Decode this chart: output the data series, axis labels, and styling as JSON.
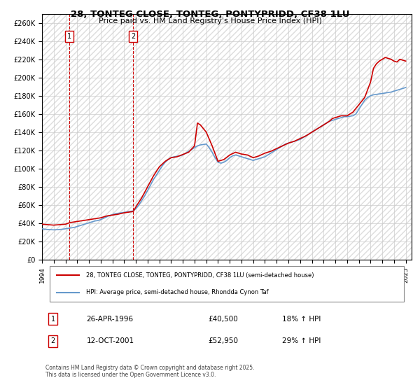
{
  "title": "28, TONTEG CLOSE, TONTEG, PONTYPRIDD, CF38 1LU",
  "subtitle": "Price paid vs. HM Land Registry's House Price Index (HPI)",
  "legend_line1": "28, TONTEG CLOSE, TONTEG, PONTYPRIDD, CF38 1LU (semi-detached house)",
  "legend_line2": "HPI: Average price, semi-detached house, Rhondda Cynon Taf",
  "footnote": "Contains HM Land Registry data © Crown copyright and database right 2025.\nThis data is licensed under the Open Government Licence v3.0.",
  "transactions": [
    {
      "label": "1",
      "date": "26-APR-1996",
      "price": 40500,
      "pct": "18% ↑ HPI",
      "x_year": 1996.32
    },
    {
      "label": "2",
      "date": "12-OCT-2001",
      "price": 52950,
      "pct": "29% ↑ HPI",
      "x_year": 2001.78
    }
  ],
  "price_color": "#cc0000",
  "hpi_color": "#6699cc",
  "vline_color": "#cc0000",
  "ylim": [
    0,
    270000
  ],
  "yticks": [
    0,
    20000,
    40000,
    60000,
    80000,
    100000,
    120000,
    140000,
    160000,
    180000,
    200000,
    220000,
    240000,
    260000
  ],
  "xlim_start": 1994.0,
  "xlim_end": 2025.5,
  "xticks": [
    1994,
    1995,
    1996,
    1997,
    1998,
    1999,
    2000,
    2001,
    2002,
    2003,
    2004,
    2005,
    2006,
    2007,
    2008,
    2009,
    2010,
    2011,
    2012,
    2013,
    2014,
    2015,
    2016,
    2017,
    2018,
    2019,
    2020,
    2021,
    2022,
    2023,
    2024,
    2025
  ],
  "hpi_data": {
    "years": [
      1994.0,
      1994.25,
      1994.5,
      1994.75,
      1995.0,
      1995.25,
      1995.5,
      1995.75,
      1996.0,
      1996.25,
      1996.5,
      1996.75,
      1997.0,
      1997.25,
      1997.5,
      1997.75,
      1998.0,
      1998.25,
      1998.5,
      1998.75,
      1999.0,
      1999.25,
      1999.5,
      1999.75,
      2000.0,
      2000.25,
      2000.5,
      2000.75,
      2001.0,
      2001.25,
      2001.5,
      2001.75,
      2002.0,
      2002.25,
      2002.5,
      2002.75,
      2003.0,
      2003.25,
      2003.5,
      2003.75,
      2004.0,
      2004.25,
      2004.5,
      2004.75,
      2005.0,
      2005.25,
      2005.5,
      2005.75,
      2006.0,
      2006.25,
      2006.5,
      2006.75,
      2007.0,
      2007.25,
      2007.5,
      2007.75,
      2008.0,
      2008.25,
      2008.5,
      2008.75,
      2009.0,
      2009.25,
      2009.5,
      2009.75,
      2010.0,
      2010.25,
      2010.5,
      2010.75,
      2011.0,
      2011.25,
      2011.5,
      2011.75,
      2012.0,
      2012.25,
      2012.5,
      2012.75,
      2013.0,
      2013.25,
      2013.5,
      2013.75,
      2014.0,
      2014.25,
      2014.5,
      2014.75,
      2015.0,
      2015.25,
      2015.5,
      2015.75,
      2016.0,
      2016.25,
      2016.5,
      2016.75,
      2017.0,
      2017.25,
      2017.5,
      2017.75,
      2018.0,
      2018.25,
      2018.5,
      2018.75,
      2019.0,
      2019.25,
      2019.5,
      2019.75,
      2020.0,
      2020.25,
      2020.5,
      2020.75,
      2021.0,
      2021.25,
      2021.5,
      2021.75,
      2022.0,
      2022.25,
      2022.5,
      2022.75,
      2023.0,
      2023.25,
      2023.5,
      2023.75,
      2024.0,
      2024.25,
      2024.5,
      2024.75,
      2025.0
    ],
    "values": [
      34000,
      33500,
      33200,
      33000,
      32800,
      33000,
      33200,
      33500,
      34000,
      34500,
      35000,
      35500,
      36500,
      37500,
      38500,
      39500,
      40500,
      41500,
      42500,
      43000,
      44000,
      45500,
      47000,
      48500,
      49500,
      50500,
      51000,
      51500,
      52000,
      52500,
      53000,
      53500,
      56000,
      60000,
      65000,
      70000,
      76000,
      82000,
      88000,
      93000,
      98000,
      103000,
      107000,
      110000,
      112000,
      113000,
      113500,
      114000,
      115000,
      117000,
      119000,
      121000,
      123000,
      125000,
      126000,
      126500,
      127000,
      123000,
      118000,
      112000,
      107000,
      106000,
      107000,
      109000,
      112000,
      114000,
      115000,
      114000,
      113000,
      112000,
      111000,
      110000,
      109000,
      110000,
      111000,
      112000,
      113000,
      115000,
      117000,
      119000,
      121000,
      123000,
      125000,
      127000,
      128000,
      129000,
      130000,
      131000,
      132000,
      134000,
      136000,
      138000,
      140000,
      142000,
      144000,
      146000,
      148000,
      150000,
      152000,
      153000,
      154000,
      155000,
      156000,
      157000,
      157000,
      157500,
      158000,
      160000,
      165000,
      170000,
      175000,
      178000,
      180000,
      181000,
      181500,
      182000,
      182500,
      183000,
      183500,
      184000,
      185000,
      186000,
      187000,
      188000,
      189000
    ]
  },
  "price_data": {
    "years": [
      1994.0,
      1994.5,
      1995.0,
      1995.5,
      1996.0,
      1996.32,
      1996.5,
      1997.0,
      1997.5,
      1998.0,
      1998.5,
      1999.0,
      1999.5,
      2000.0,
      2000.5,
      2001.0,
      2001.78,
      2002.0,
      2002.5,
      2003.0,
      2003.5,
      2004.0,
      2004.5,
      2005.0,
      2005.5,
      2006.0,
      2006.5,
      2007.0,
      2007.25,
      2007.5,
      2008.0,
      2008.5,
      2009.0,
      2009.5,
      2010.0,
      2010.5,
      2011.0,
      2011.5,
      2012.0,
      2012.5,
      2013.0,
      2013.5,
      2014.0,
      2014.5,
      2015.0,
      2015.5,
      2016.0,
      2016.5,
      2017.0,
      2017.5,
      2018.0,
      2018.5,
      2018.75,
      2019.0,
      2019.5,
      2020.0,
      2020.5,
      2021.0,
      2021.5,
      2022.0,
      2022.25,
      2022.5,
      2022.75,
      2023.0,
      2023.25,
      2023.5,
      2023.75,
      2024.0,
      2024.25,
      2024.5,
      2025.0
    ],
    "values": [
      39000,
      38500,
      38000,
      38500,
      39000,
      40500,
      41000,
      42000,
      43000,
      44000,
      45000,
      46000,
      48000,
      49000,
      50000,
      51500,
      52950,
      58000,
      68000,
      80000,
      92000,
      102000,
      108000,
      112000,
      113000,
      115500,
      118000,
      125000,
      150000,
      148000,
      140000,
      125000,
      108000,
      110000,
      115000,
      118000,
      116000,
      115000,
      112000,
      114000,
      117000,
      119000,
      122000,
      125000,
      128000,
      130000,
      133000,
      136000,
      140000,
      144000,
      148000,
      152000,
      155000,
      156000,
      158000,
      158000,
      162000,
      170000,
      178000,
      195000,
      210000,
      215000,
      218000,
      220000,
      222000,
      221000,
      220000,
      218000,
      217000,
      220000,
      218000
    ]
  }
}
